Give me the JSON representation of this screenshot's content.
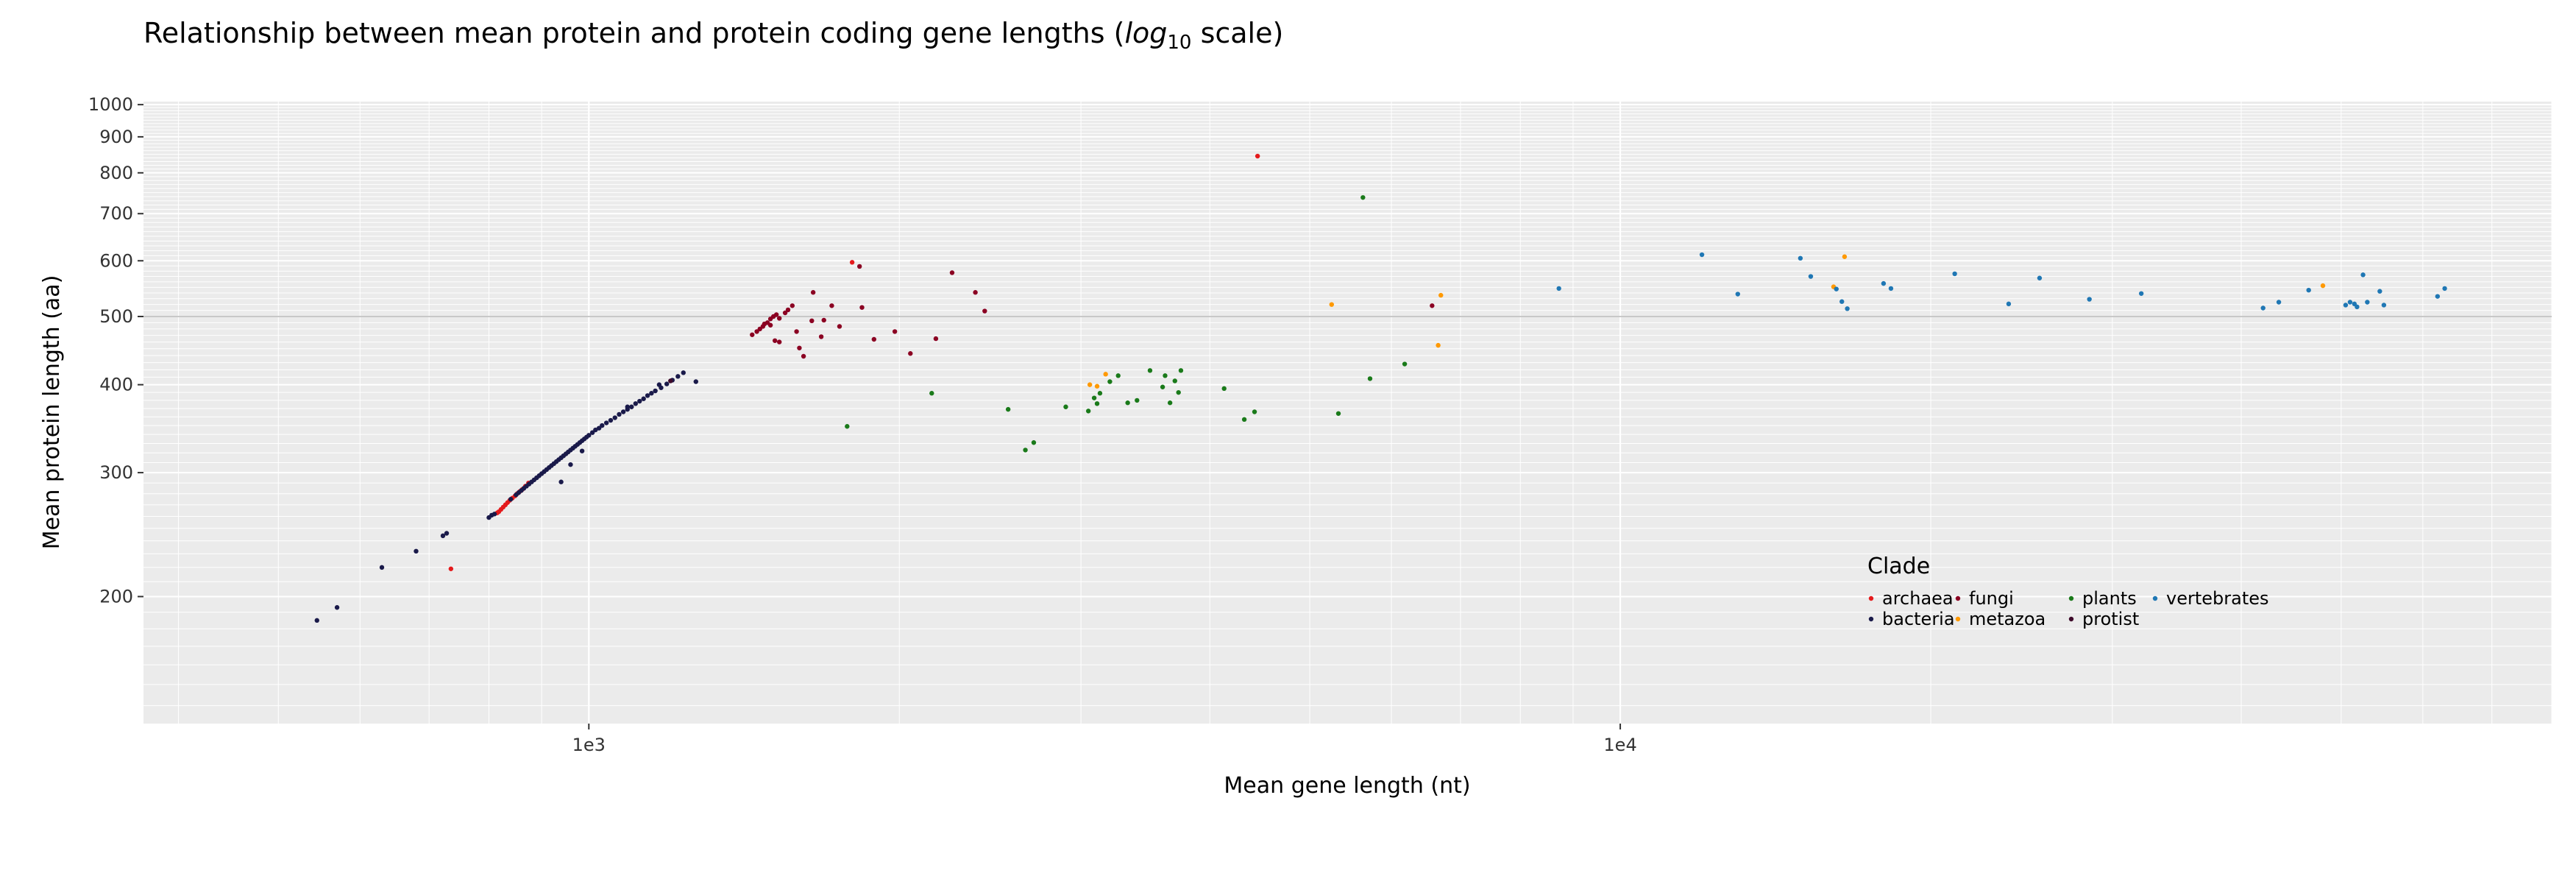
{
  "chart_data": {
    "type": "scatter",
    "title": {
      "prefix": "Relationship between mean protein and protein coding gene lengths (",
      "log_word": "log",
      "log_sub": "10",
      "suffix": " scale)"
    },
    "xlabel": "Mean gene length (nt)",
    "ylabel": "Mean protein length (aa)",
    "x_scale": "log10",
    "y_scale": "log10",
    "xlim": [
      370,
      80000
    ],
    "ylim": [
      132,
      1010
    ],
    "x_ticks": [
      {
        "value": 1000,
        "label": "1e3"
      },
      {
        "value": 10000,
        "label": "1e4"
      }
    ],
    "y_ticks": [
      {
        "value": 200,
        "label": "200"
      },
      {
        "value": 300,
        "label": "300"
      },
      {
        "value": 400,
        "label": "400"
      },
      {
        "value": 500,
        "label": "500"
      },
      {
        "value": 600,
        "label": "600"
      },
      {
        "value": 700,
        "label": "700"
      },
      {
        "value": 800,
        "label": "800"
      },
      {
        "value": 900,
        "label": "900"
      },
      {
        "value": 1000,
        "label": "1000"
      }
    ],
    "grid": true,
    "legend": {
      "title": "Clade",
      "placement": "bottom-right inside",
      "entries": [
        "archaea",
        "bacteria",
        "fungi",
        "metazoa",
        "plants",
        "protist",
        "vertebrates"
      ]
    },
    "series": [
      {
        "name": "archaea",
        "color": "#e41a1c",
        "points": [
          [
            735,
            219
          ],
          [
            815,
            263
          ],
          [
            818,
            264
          ],
          [
            822,
            266
          ],
          [
            826,
            268
          ],
          [
            830,
            270
          ],
          [
            834,
            272
          ],
          [
            838,
            274
          ],
          [
            843,
            276
          ],
          [
            848,
            278
          ],
          [
            852,
            280
          ],
          [
            857,
            282
          ],
          [
            862,
            284
          ],
          [
            868,
            287
          ],
          [
            874,
            290
          ],
          [
            1800,
            597
          ],
          [
            4450,
            845
          ]
        ]
      },
      {
        "name": "bacteria",
        "color": "#1a1a4a",
        "points": [
          [
            545,
            185
          ],
          [
            570,
            193
          ],
          [
            630,
            220
          ],
          [
            680,
            232
          ],
          [
            722,
            244
          ],
          [
            728,
            246
          ],
          [
            800,
            259
          ],
          [
            805,
            261
          ],
          [
            810,
            262
          ],
          [
            840,
            275
          ],
          [
            850,
            279
          ],
          [
            855,
            281
          ],
          [
            860,
            283
          ],
          [
            865,
            285
          ],
          [
            870,
            287
          ],
          [
            875,
            289
          ],
          [
            880,
            291
          ],
          [
            885,
            293
          ],
          [
            890,
            295
          ],
          [
            895,
            297
          ],
          [
            900,
            299
          ],
          [
            905,
            301
          ],
          [
            910,
            303
          ],
          [
            915,
            305
          ],
          [
            920,
            307
          ],
          [
            925,
            309
          ],
          [
            930,
            311
          ],
          [
            935,
            313
          ],
          [
            940,
            315
          ],
          [
            945,
            317
          ],
          [
            950,
            319
          ],
          [
            955,
            321
          ],
          [
            960,
            323
          ],
          [
            965,
            325
          ],
          [
            970,
            327
          ],
          [
            975,
            329
          ],
          [
            980,
            331
          ],
          [
            985,
            333
          ],
          [
            990,
            335
          ],
          [
            995,
            337
          ],
          [
            1000,
            339
          ],
          [
            1008,
            342
          ],
          [
            1015,
            345
          ],
          [
            1023,
            347
          ],
          [
            1030,
            350
          ],
          [
            1040,
            353
          ],
          [
            1050,
            356
          ],
          [
            1060,
            359
          ],
          [
            1070,
            363
          ],
          [
            1080,
            366
          ],
          [
            1090,
            369
          ],
          [
            1100,
            372
          ],
          [
            1110,
            376
          ],
          [
            1120,
            379
          ],
          [
            1130,
            382
          ],
          [
            1140,
            386
          ],
          [
            1150,
            389
          ],
          [
            1160,
            392
          ],
          [
            1175,
            396
          ],
          [
            1190,
            401
          ],
          [
            1205,
            406
          ],
          [
            1220,
            411
          ],
          [
            1235,
            416
          ],
          [
            1270,
            404
          ],
          [
            940,
            291
          ],
          [
            960,
            308
          ],
          [
            985,
            322
          ],
          [
            1090,
            372
          ],
          [
            1170,
            400
          ]
        ]
      },
      {
        "name": "fungi",
        "color": "#8b0022",
        "points": [
          [
            1440,
            471
          ],
          [
            1455,
            476
          ],
          [
            1465,
            480
          ],
          [
            1475,
            484
          ],
          [
            1480,
            488
          ],
          [
            1490,
            490
          ],
          [
            1500,
            496
          ],
          [
            1510,
            500
          ],
          [
            1520,
            503
          ],
          [
            1530,
            497
          ],
          [
            1500,
            486
          ],
          [
            1515,
            462
          ],
          [
            1530,
            460
          ],
          [
            1550,
            506
          ],
          [
            1560,
            511
          ],
          [
            1575,
            518
          ],
          [
            1590,
            476
          ],
          [
            1600,
            451
          ],
          [
            1615,
            439
          ],
          [
            1645,
            493
          ],
          [
            1650,
            541
          ],
          [
            1680,
            468
          ],
          [
            1690,
            494
          ],
          [
            1720,
            518
          ],
          [
            1750,
            484
          ],
          [
            1840,
            515
          ],
          [
            1890,
            464
          ],
          [
            1980,
            476
          ],
          [
            2050,
            443
          ],
          [
            2170,
            465
          ],
          [
            2370,
            541
          ],
          [
            2420,
            509
          ],
          [
            2250,
            577
          ],
          [
            1830,
            589
          ],
          [
            6570,
            518
          ]
        ]
      },
      {
        "name": "metazoa",
        "color": "#ff9900",
        "points": [
          [
            3060,
            400
          ],
          [
            3110,
            398
          ],
          [
            3170,
            414
          ],
          [
            5250,
            520
          ],
          [
            6660,
            455
          ],
          [
            6700,
            536
          ],
          [
            16100,
            551
          ],
          [
            16500,
            608
          ],
          [
            48000,
            553
          ]
        ]
      },
      {
        "name": "plants",
        "color": "#1a7a1a",
        "points": [
          [
            1780,
            349
          ],
          [
            2150,
            389
          ],
          [
            2550,
            369
          ],
          [
            2650,
            323
          ],
          [
            2700,
            331
          ],
          [
            2900,
            372
          ],
          [
            3050,
            367
          ],
          [
            3090,
            383
          ],
          [
            3110,
            376
          ],
          [
            3130,
            389
          ],
          [
            3200,
            404
          ],
          [
            3260,
            412
          ],
          [
            3330,
            377
          ],
          [
            3400,
            380
          ],
          [
            3500,
            419
          ],
          [
            3600,
            397
          ],
          [
            3620,
            412
          ],
          [
            3660,
            377
          ],
          [
            3700,
            405
          ],
          [
            3730,
            390
          ],
          [
            3750,
            419
          ],
          [
            4130,
            395
          ],
          [
            4320,
            357
          ],
          [
            4420,
            366
          ],
          [
            5330,
            364
          ],
          [
            5630,
            738
          ],
          [
            5720,
            408
          ],
          [
            6180,
            428
          ]
        ]
      },
      {
        "name": "protist",
        "color": "#3d0a2a",
        "points": [
          [
            1200,
            405
          ]
        ]
      },
      {
        "name": "vertebrates",
        "color": "#1f77b4",
        "points": [
          [
            8720,
            548
          ],
          [
            12000,
            612
          ],
          [
            13000,
            538
          ],
          [
            14950,
            605
          ],
          [
            15300,
            570
          ],
          [
            16200,
            547
          ],
          [
            16400,
            525
          ],
          [
            16600,
            513
          ],
          [
            18000,
            557
          ],
          [
            18300,
            548
          ],
          [
            21100,
            575
          ],
          [
            23800,
            521
          ],
          [
            25500,
            567
          ],
          [
            28500,
            529
          ],
          [
            32000,
            539
          ],
          [
            42000,
            514
          ],
          [
            43500,
            524
          ],
          [
            46500,
            545
          ],
          [
            50500,
            519
          ],
          [
            51000,
            524
          ],
          [
            51500,
            521
          ],
          [
            51800,
            516
          ],
          [
            52500,
            573
          ],
          [
            53000,
            524
          ],
          [
            54500,
            543
          ],
          [
            55000,
            519
          ],
          [
            62000,
            534
          ],
          [
            63000,
            548
          ]
        ]
      }
    ]
  }
}
